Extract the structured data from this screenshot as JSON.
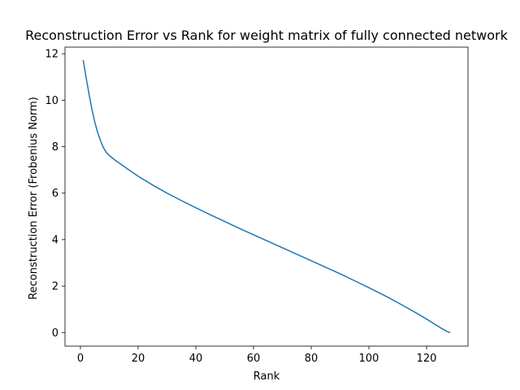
{
  "chart_data": {
    "type": "line",
    "title": "Reconstruction Error vs Rank for weight matrix of fully connected network",
    "xlabel": "Rank",
    "ylabel": "Reconstruction Error (Frobenius Norm)",
    "xlim": [
      -5.35,
      134.35
    ],
    "ylim": [
      -0.585,
      12.285
    ],
    "xticks": [
      0,
      20,
      40,
      60,
      80,
      100,
      120
    ],
    "yticks": [
      0,
      2,
      4,
      6,
      8,
      10,
      12
    ],
    "grid": false,
    "color": "#1f77b4",
    "series": [
      {
        "x": [
          1,
          2,
          3,
          4,
          5,
          6,
          7,
          8,
          9,
          10,
          12,
          14,
          16,
          18,
          20,
          25,
          30,
          35,
          40,
          45,
          50,
          55,
          60,
          65,
          70,
          75,
          80,
          85,
          90,
          95,
          100,
          105,
          110,
          115,
          120,
          122,
          124,
          125,
          126,
          127,
          128
        ],
        "y": [
          11.7,
          10.95,
          10.25,
          9.6,
          9.05,
          8.6,
          8.25,
          7.95,
          7.75,
          7.62,
          7.42,
          7.25,
          7.07,
          6.9,
          6.73,
          6.35,
          6.0,
          5.68,
          5.37,
          5.07,
          4.78,
          4.49,
          4.21,
          3.93,
          3.65,
          3.37,
          3.09,
          2.81,
          2.53,
          2.23,
          1.93,
          1.62,
          1.29,
          0.94,
          0.58,
          0.42,
          0.27,
          0.19,
          0.12,
          0.05,
          0.0
        ]
      }
    ]
  }
}
